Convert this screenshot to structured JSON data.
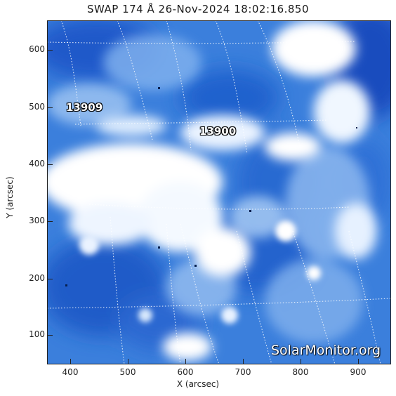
{
  "title": "SWAP 174 Å 26-Nov-2024 18:02:16.850",
  "axes": {
    "xlabel": "X (arcsec)",
    "ylabel": "Y (arcsec)",
    "x_ticks": [
      "400",
      "500",
      "600",
      "700",
      "800",
      "900"
    ],
    "y_ticks": [
      "600",
      "500",
      "400",
      "300",
      "200",
      "100"
    ]
  },
  "regions": [
    {
      "label": "13909"
    },
    {
      "label": "13900"
    }
  ],
  "watermark": "SolarMonitor.org",
  "colors": {
    "background_blue": "#2a6fd4",
    "dark_blue": "#0a3fb0",
    "bright": "#ffffff"
  }
}
